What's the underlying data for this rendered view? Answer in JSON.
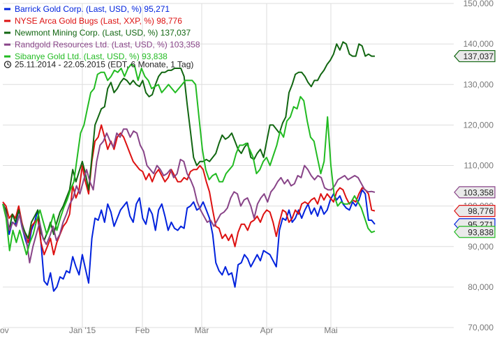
{
  "chart_data": {
    "type": "line",
    "title": "",
    "xlabel": "",
    "ylabel": "",
    "period_label": "25.11.2014 - 22.05.2015 (EDT, 6 Monate, 1 Tag)",
    "x_ticks": [
      "ov",
      "Jan '15",
      "Feb",
      "Mär",
      "Apr",
      "Mai"
    ],
    "y_ticks": [
      "70,000",
      "80,000",
      "90,000",
      "100,000",
      "110,000",
      "120,000",
      "130,000",
      "140,000",
      "150,000"
    ],
    "ylim": [
      70,
      150
    ],
    "grid": true,
    "legend_position": "top-left",
    "series": [
      {
        "name": "Barrick Gold Corp. (Last, USD, %)",
        "last": "95,271",
        "color": "#0022dd",
        "values": [
          100.5,
          99.0,
          93.0,
          96.0,
          95.5,
          99.0,
          95.0,
          92.0,
          89.5,
          94.0,
          96.0,
          99.0,
          91.0,
          81.5,
          80.5,
          83.5,
          79.0,
          80.0,
          82.5,
          82.0,
          84.0,
          83.5,
          87.5,
          85.0,
          83.0,
          88.0,
          84.5,
          81.0,
          92.0,
          97.0,
          96.5,
          99.0,
          96.0,
          100.5,
          98.5,
          95.0,
          97.0,
          99.0,
          100.0,
          101.0,
          97.5,
          96.0,
          100.5,
          102.0,
          97.0,
          95.5,
          99.5,
          98.0,
          94.0,
          99.0,
          100.5,
          97.5,
          94.0,
          96.0,
          94.5,
          94.0,
          95.0,
          94.5,
          99.5,
          100.0,
          101.0,
          99.0,
          99.5,
          101.0,
          99.0,
          97.0,
          93.0,
          86.0,
          84.0,
          83.0,
          85.0,
          83.0,
          83.5,
          80.0,
          85.5,
          86.0,
          88.0,
          87.0,
          85.0,
          86.5,
          88.0,
          86.5,
          89.0,
          88.5,
          88.0,
          86.5,
          85.0,
          94.0,
          97.0,
          96.5,
          99.0,
          96.0,
          97.0,
          99.0,
          97.0,
          99.0,
          100.5,
          98.0,
          99.5,
          97.5,
          100.0,
          98.0,
          99.0,
          101.5,
          103.0,
          101.5,
          102.5,
          100.5,
          99.5,
          99.0,
          101.0,
          100.0,
          101.5,
          104.0,
          103.0,
          96.5,
          96.5,
          95.5
        ],
        "text": "Barrick Gold Corp. (Last, USD, %)"
      },
      {
        "name": "NYSE Arca Gold Bugs (Last, XXP, %)",
        "last": "98,776",
        "color": "#dd1111",
        "values": [
          101.0,
          100.0,
          97.0,
          98.0,
          97.0,
          100.0,
          96.0,
          93.0,
          91.0,
          95.0,
          96.0,
          97.0,
          91.0,
          88.0,
          90.0,
          92.0,
          88.0,
          91.0,
          93.0,
          95.0,
          96.0,
          98.0,
          105.0,
          102.0,
          104.0,
          110.0,
          106.0,
          103.0,
          111.0,
          116.0,
          117.0,
          120.0,
          117.0,
          114.0,
          116.0,
          114.0,
          117.0,
          118.0,
          117.0,
          115.0,
          113.0,
          111.0,
          110.0,
          109.0,
          108.5,
          106.5,
          108.0,
          106.0,
          108.0,
          109.0,
          107.5,
          106.0,
          107.0,
          109.0,
          107.5,
          106.0,
          106.0,
          107.0,
          106.5,
          108.5,
          109.0,
          109.0,
          110.0,
          109.0,
          106.0,
          103.5,
          99.0,
          95.0,
          94.5,
          92.0,
          93.0,
          91.5,
          93.0,
          90.0,
          93.5,
          95.5,
          95.5,
          94.0,
          96.0,
          96.5,
          97.5,
          96.0,
          98.0,
          99.0,
          98.5,
          96.0,
          92.5,
          96.0,
          99.0,
          98.5,
          96.0,
          97.0,
          99.0,
          98.0,
          100.5,
          101.0,
          100.5,
          101.5,
          102.0,
          100.5,
          103.0,
          101.5,
          103.0,
          102.0,
          101.0,
          103.5,
          104.5,
          104.0,
          102.0,
          100.5,
          101.5,
          101.0,
          103.0,
          104.5,
          104.0,
          103.0,
          99.0,
          98.8
        ],
        "text": "NYSE Arca Gold Bugs (Last, XXP, %)"
      },
      {
        "name": "Newmont Mining Corp. (Last, USD, %)",
        "last": "137,037",
        "color": "#116611",
        "values": [
          100.5,
          99.0,
          94.0,
          98.0,
          96.0,
          99.0,
          95.5,
          93.5,
          92.0,
          96.0,
          97.5,
          99.0,
          93.5,
          91.5,
          93.5,
          96.0,
          93.0,
          96.0,
          98.5,
          100.0,
          102.0,
          104.0,
          109.0,
          106.0,
          108.5,
          111.0,
          108.0,
          104.0,
          112.0,
          120.0,
          122.0,
          124.0,
          124.5,
          129.0,
          130.5,
          128.0,
          129.0,
          130.5,
          131.5,
          131.0,
          130.0,
          131.0,
          130.0,
          129.5,
          131.0,
          128.0,
          127.0,
          127.5,
          130.0,
          132.0,
          133.0,
          133.0,
          133.5,
          133.5,
          134.0,
          134.0,
          134.0,
          132.0,
          125.0,
          118.5,
          112.0,
          110.0,
          111.0,
          111.0,
          111.5,
          111.0,
          112.0,
          113.0,
          115.5,
          117.5,
          116.5,
          117.0,
          118.0,
          116.0,
          114.0,
          113.0,
          114.5,
          115.5,
          112.0,
          111.5,
          113.0,
          114.0,
          112.0,
          116.0,
          120.0,
          120.0,
          119.0,
          118.0,
          120.5,
          122.0,
          128.0,
          130.0,
          132.5,
          133.0,
          133.0,
          132.0,
          130.5,
          129.5,
          131.0,
          131.0,
          132.5,
          133.5,
          135.0,
          136.0,
          137.5,
          140.0,
          138.5,
          140.5,
          140.0,
          137.5,
          137.0,
          137.0,
          140.0,
          139.5,
          137.0,
          137.5,
          137.0,
          137.0
        ],
        "text": "Newmont Mining Corp. (Last, USD, %)"
      },
      {
        "name": "Randgold Resources Ltd. (Last, USD, %)",
        "last": "103,358",
        "color": "#884488",
        "values": [
          100.5,
          98.0,
          94.0,
          96.0,
          95.0,
          98.0,
          94.0,
          92.0,
          86.0,
          90.0,
          93.0,
          96.0,
          92.0,
          90.5,
          92.5,
          95.0,
          91.5,
          93.0,
          96.0,
          98.0,
          100.5,
          102.0,
          105.0,
          103.0,
          106.0,
          109.0,
          106.0,
          104.0,
          111.0,
          115.0,
          116.0,
          118.0,
          116.0,
          114.5,
          118.0,
          117.0,
          119.0,
          119.0,
          117.0,
          118.5,
          118.0,
          115.0,
          113.5,
          110.0,
          109.0,
          108.0,
          110.0,
          109.0,
          107.5,
          108.0,
          109.0,
          107.0,
          108.0,
          111.5,
          111.0,
          108.0,
          106.5,
          104.5,
          101.0,
          99.0,
          97.5,
          96.0,
          96.5,
          95.0,
          96.5,
          98.0,
          98.5,
          99.5,
          102.0,
          103.5,
          103.0,
          100.0,
          101.5,
          102.0,
          100.0,
          97.0,
          100.5,
          102.0,
          103.0,
          101.0,
          103.5,
          104.5,
          106.0,
          107.0,
          105.5,
          106.5,
          105.0,
          105.5,
          107.5,
          107.0,
          110.0,
          109.0,
          107.5,
          106.5,
          107.5,
          107.0,
          104.5,
          104.0,
          104.0,
          105.0,
          106.5,
          107.0,
          107.5,
          106.5,
          107.0,
          107.5,
          107.0,
          105.5,
          104.0,
          103.5,
          103.6,
          103.4
        ],
        "text": "Randgold Resources Ltd. (Last, USD, %)"
      },
      {
        "name": "Sibanye Gold Ltd. (Last, USD, %)",
        "last": "93,838",
        "color": "#22bb22",
        "values": [
          100.5,
          97.0,
          89.0,
          94.0,
          91.0,
          94.0,
          91.0,
          88.0,
          91.0,
          93.0,
          96.5,
          99.0,
          96.0,
          93.0,
          95.0,
          98.0,
          94.0,
          97.0,
          99.5,
          101.5,
          104.0,
          106.0,
          112.0,
          118.0,
          120.0,
          124.0,
          128.0,
          129.0,
          132.5,
          133.0,
          133.0,
          131.0,
          132.0,
          133.5,
          133.0,
          134.0,
          132.0,
          134.0,
          135.0,
          134.5,
          131.0,
          134.0,
          132.0,
          131.0,
          129.0,
          129.5,
          130.0,
          128.0,
          129.0,
          130.0,
          129.0,
          128.0,
          129.0,
          130.0,
          131.0,
          131.0,
          131.0,
          130.0,
          122.0,
          114.0,
          109.0,
          106.5,
          107.5,
          108.0,
          106.0,
          106.0,
          108.0,
          109.0,
          110.0,
          113.0,
          115.0,
          115.0,
          115.5,
          114.0,
          112.0,
          108.0,
          109.0,
          111.0,
          112.0,
          110.0,
          112.5,
          115.0,
          118.5,
          117.0,
          121.0,
          122.0,
          124.5,
          124.0,
          127.0,
          126.0,
          121.0,
          117.0,
          116.0,
          112.0,
          108.0,
          111.0,
          122.0,
          110.0,
          102.5,
          100.0,
          101.0,
          100.5,
          100.5,
          101.0,
          102.5,
          101.0,
          99.5,
          97.0,
          94.5,
          93.5,
          93.8
        ],
        "text": "Sibanye Gold Ltd. (Last, USD, %)"
      }
    ]
  }
}
